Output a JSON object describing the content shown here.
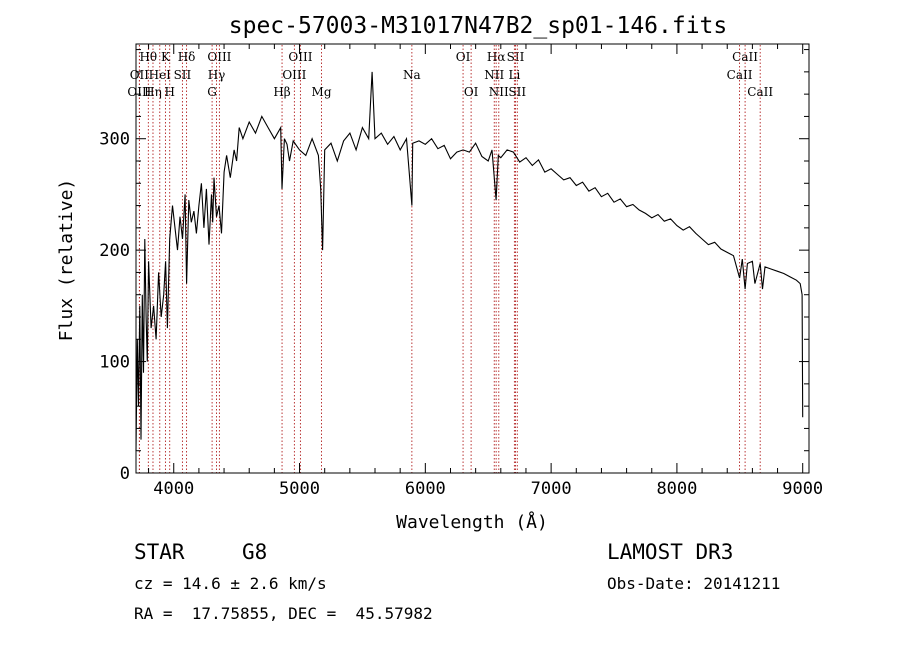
{
  "chart_data": {
    "type": "line",
    "title": "spec-57003-M31017N47B2_sp01-146.fits",
    "xlabel": "Wavelength (Å)",
    "ylabel": "Flux (relative)",
    "xlim": [
      3700,
      9050
    ],
    "ylim": [
      0,
      385
    ],
    "xticks": [
      "4000",
      "5000",
      "6000",
      "7000",
      "8000",
      "9000"
    ],
    "yticks": [
      "0",
      "100",
      "200",
      "300"
    ],
    "spectrum": {
      "name": "flux",
      "x": [
        3700,
        3710,
        3720,
        3730,
        3740,
        3750,
        3760,
        3770,
        3780,
        3790,
        3800,
        3820,
        3840,
        3860,
        3880,
        3900,
        3920,
        3935,
        3950,
        3968,
        3990,
        4010,
        4030,
        4050,
        4070,
        4090,
        4102,
        4120,
        4140,
        4160,
        4180,
        4200,
        4220,
        4240,
        4260,
        4280,
        4300,
        4310,
        4320,
        4340,
        4360,
        4380,
        4400,
        4420,
        4450,
        4480,
        4500,
        4520,
        4550,
        4600,
        4650,
        4700,
        4750,
        4800,
        4850,
        4861,
        4880,
        4900,
        4920,
        4950,
        5000,
        5050,
        5100,
        5150,
        5168,
        5183,
        5200,
        5250,
        5300,
        5350,
        5400,
        5450,
        5500,
        5550,
        5577,
        5600,
        5650,
        5700,
        5750,
        5800,
        5850,
        5893,
        5900,
        5950,
        6000,
        6050,
        6100,
        6150,
        6200,
        6250,
        6300,
        6350,
        6400,
        6450,
        6500,
        6530,
        6563,
        6580,
        6600,
        6650,
        6700,
        6750,
        6800,
        6850,
        6900,
        6950,
        7000,
        7050,
        7100,
        7150,
        7200,
        7250,
        7300,
        7350,
        7400,
        7450,
        7500,
        7550,
        7600,
        7650,
        7700,
        7750,
        7800,
        7850,
        7900,
        7950,
        8000,
        8050,
        8100,
        8150,
        8200,
        8250,
        8300,
        8350,
        8400,
        8450,
        8498,
        8520,
        8542,
        8560,
        8600,
        8620,
        8662,
        8680,
        8700,
        8750,
        8800,
        8850,
        8900,
        8950,
        8980,
        8995,
        9000
      ],
      "y": [
        20,
        120,
        60,
        150,
        30,
        160,
        90,
        210,
        140,
        100,
        190,
        130,
        150,
        120,
        180,
        140,
        160,
        190,
        130,
        210,
        240,
        220,
        200,
        230,
        210,
        250,
        170,
        245,
        225,
        235,
        215,
        240,
        260,
        220,
        255,
        205,
        250,
        225,
        265,
        230,
        240,
        215,
        270,
        285,
        265,
        290,
        280,
        310,
        300,
        315,
        305,
        320,
        310,
        300,
        310,
        255,
        300,
        295,
        280,
        298,
        290,
        285,
        300,
        285,
        255,
        200,
        290,
        296,
        280,
        298,
        305,
        290,
        310,
        300,
        360,
        300,
        305,
        295,
        302,
        290,
        300,
        240,
        296,
        298,
        295,
        300,
        291,
        294,
        282,
        288,
        290,
        288,
        296,
        284,
        280,
        290,
        245,
        285,
        283,
        290,
        288,
        279,
        283,
        276,
        281,
        270,
        273,
        268,
        263,
        265,
        258,
        261,
        253,
        256,
        248,
        251,
        243,
        246,
        239,
        241,
        236,
        233,
        229,
        232,
        226,
        228,
        222,
        218,
        221,
        215,
        210,
        205,
        207,
        201,
        198,
        195,
        175,
        192,
        165,
        188,
        190,
        170,
        188,
        165,
        185,
        183,
        181,
        179,
        176,
        173,
        170,
        160,
        50
      ],
      "color": "#000000"
    },
    "line_markers": [
      {
        "label": "Hθ",
        "x": 3798,
        "row": 0,
        "color": "#b22222"
      },
      {
        "label": "OII",
        "x": 3727,
        "row": 1,
        "color": "#b22222"
      },
      {
        "label": "OIII",
        "x": 3727,
        "row": 2,
        "color": "#b22222"
      },
      {
        "label": "Hη",
        "x": 3835,
        "row": 2,
        "color": "#b22222"
      },
      {
        "label": "HeI",
        "x": 3889,
        "row": 1,
        "color": "#b22222"
      },
      {
        "label": "K",
        "x": 3934,
        "row": 0,
        "color": "#b22222"
      },
      {
        "label": "H",
        "x": 3968,
        "row": 2,
        "color": "#b22222"
      },
      {
        "label": "SII",
        "x": 4069,
        "row": 1,
        "color": "#b22222"
      },
      {
        "label": "Hδ",
        "x": 4102,
        "row": 0,
        "color": "#b22222"
      },
      {
        "label": "OIII",
        "x": 4363,
        "row": 0,
        "color": "#b22222"
      },
      {
        "label": "Hγ",
        "x": 4340,
        "row": 1,
        "color": "#b22222"
      },
      {
        "label": "G",
        "x": 4305,
        "row": 2,
        "color": "#b22222"
      },
      {
        "label": "Hβ",
        "x": 4861,
        "row": 2,
        "color": "#b22222"
      },
      {
        "label": "OIII",
        "x": 5007,
        "row": 0,
        "color": "#b22222"
      },
      {
        "label": "OIII",
        "x": 4959,
        "row": 1,
        "color": "#b22222"
      },
      {
        "label": "Mg",
        "x": 5175,
        "row": 2,
        "color": "#b22222"
      },
      {
        "label": "Na",
        "x": 5893,
        "row": 1,
        "color": "#b22222"
      },
      {
        "label": "OI",
        "x": 6300,
        "row": 0,
        "color": "#b22222"
      },
      {
        "label": "OI",
        "x": 6364,
        "row": 2,
        "color": "#b22222"
      },
      {
        "label": "Hα",
        "x": 6563,
        "row": 0,
        "color": "#b22222"
      },
      {
        "label": "NII",
        "x": 6548,
        "row": 1,
        "color": "#b22222"
      },
      {
        "label": "NII",
        "x": 6584,
        "row": 2,
        "color": "#b22222"
      },
      {
        "label": "SII",
        "x": 6717,
        "row": 0,
        "color": "#b22222"
      },
      {
        "label": "Li",
        "x": 6708,
        "row": 1,
        "color": "#b22222"
      },
      {
        "label": "SII",
        "x": 6731,
        "row": 2,
        "color": "#b22222"
      },
      {
        "label": "CaII",
        "x": 8542,
        "row": 0,
        "color": "#b22222"
      },
      {
        "label": "CaII",
        "x": 8498,
        "row": 1,
        "color": "#b22222"
      },
      {
        "label": "CaII",
        "x": 8662,
        "row": 2,
        "color": "#b22222"
      }
    ]
  },
  "info": {
    "class_label": "STAR",
    "subclass_label": "G8",
    "survey": "LAMOST DR3",
    "cz_line": "cz = 14.6 ± 2.6 km/s",
    "obs_date": "Obs-Date: 20141211",
    "coords": "RA =  17.75855, DEC =  45.57982"
  }
}
